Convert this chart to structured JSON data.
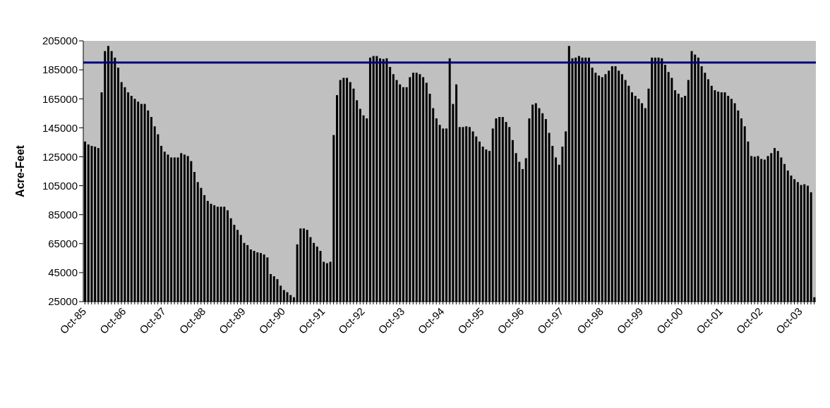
{
  "chart_data": {
    "type": "bar",
    "ylabel": "Acre-Feet",
    "categories": [
      "Oct-85",
      null,
      null,
      null,
      null,
      null,
      null,
      null,
      null,
      null,
      null,
      null,
      "Oct-86",
      null,
      null,
      null,
      null,
      null,
      null,
      null,
      null,
      null,
      null,
      null,
      "Oct-87",
      null,
      null,
      null,
      null,
      null,
      null,
      null,
      null,
      null,
      null,
      null,
      "Oct-88",
      null,
      null,
      null,
      null,
      null,
      null,
      null,
      null,
      null,
      null,
      null,
      "Oct-89",
      null,
      null,
      null,
      null,
      null,
      null,
      null,
      null,
      null,
      null,
      null,
      "Oct-90",
      null,
      null,
      null,
      null,
      null,
      null,
      null,
      null,
      null,
      null,
      null,
      "Oct-91",
      null,
      null,
      null,
      null,
      null,
      null,
      null,
      null,
      null,
      null,
      null,
      "Oct-92",
      null,
      null,
      null,
      null,
      null,
      null,
      null,
      null,
      null,
      null,
      null,
      "Oct-93",
      null,
      null,
      null,
      null,
      null,
      null,
      null,
      null,
      null,
      null,
      null,
      "Oct-94",
      null,
      null,
      null,
      null,
      null,
      null,
      null,
      null,
      null,
      null,
      null,
      "Oct-95",
      null,
      null,
      null,
      null,
      null,
      null,
      null,
      null,
      null,
      null,
      null,
      "Oct-96",
      null,
      null,
      null,
      null,
      null,
      null,
      null,
      null,
      null,
      null,
      null,
      "Oct-97",
      null,
      null,
      null,
      null,
      null,
      null,
      null,
      null,
      null,
      null,
      null,
      "Oct-98",
      null,
      null,
      null,
      null,
      null,
      null,
      null,
      null,
      null,
      null,
      null,
      "Oct-99",
      null,
      null,
      null,
      null,
      null,
      null,
      null,
      null,
      null,
      null,
      null,
      "Oct-00",
      null,
      null,
      null,
      null,
      null,
      null,
      null,
      null,
      null,
      null,
      null,
      "Oct-01",
      null,
      null,
      null,
      null,
      null,
      null,
      null,
      null,
      null,
      null,
      null,
      "Oct-02",
      null,
      null,
      null,
      null,
      null,
      null,
      null,
      null,
      null,
      null,
      null,
      "Oct-03",
      null,
      null,
      null,
      null
    ],
    "values": [
      135500,
      133500,
      132500,
      132000,
      131000,
      169500,
      198000,
      201500,
      198000,
      193500,
      186500,
      176500,
      173000,
      169500,
      167000,
      165000,
      163000,
      161500,
      161500,
      157000,
      152500,
      146000,
      140500,
      132500,
      128500,
      126500,
      124500,
      124500,
      124500,
      127500,
      126500,
      125500,
      122000,
      114500,
      107500,
      103500,
      98500,
      94500,
      92500,
      91500,
      90500,
      90500,
      90500,
      88000,
      82500,
      78000,
      74500,
      71000,
      65500,
      64000,
      61000,
      60000,
      59000,
      58500,
      57500,
      55500,
      44000,
      42500,
      40500,
      36000,
      33000,
      31500,
      29500,
      28000,
      64500,
      75500,
      75500,
      74500,
      69500,
      65500,
      63000,
      60000,
      52500,
      51500,
      52500,
      140000,
      167500,
      178000,
      179500,
      179500,
      176500,
      172000,
      164000,
      158000,
      153500,
      151500,
      193500,
      194500,
      194500,
      193000,
      192500,
      193000,
      187000,
      182000,
      178000,
      175000,
      173000,
      173000,
      180000,
      183000,
      183000,
      182000,
      180000,
      176000,
      168500,
      158500,
      151500,
      147000,
      144500,
      144500,
      193000,
      161500,
      175000,
      145500,
      145500,
      146000,
      145500,
      142500,
      139000,
      135500,
      132000,
      130000,
      129000,
      144500,
      151500,
      152500,
      152500,
      149000,
      145500,
      136500,
      127500,
      121500,
      116500,
      124000,
      151500,
      161000,
      162000,
      158500,
      155000,
      151000,
      141500,
      132500,
      124500,
      119500,
      132000,
      142500,
      201500,
      193000,
      193500,
      194500,
      193500,
      193500,
      193500,
      186500,
      183000,
      181000,
      180000,
      182000,
      184500,
      187500,
      187500,
      184500,
      182000,
      178000,
      174000,
      169500,
      167000,
      165000,
      162000,
      158500,
      172000,
      193500,
      193500,
      193500,
      193000,
      188500,
      183500,
      179500,
      171000,
      168500,
      166000,
      167000,
      178000,
      198000,
      195500,
      193500,
      187500,
      183000,
      178500,
      174000,
      171000,
      170000,
      169500,
      169500,
      167000,
      165000,
      162000,
      157000,
      151500,
      146000,
      135500,
      125500,
      125000,
      125500,
      123500,
      123000,
      125500,
      127500,
      131000,
      129000,
      124500,
      120000,
      115500,
      112000,
      109500,
      107500,
      105500,
      106000,
      105000,
      100500,
      28000
    ],
    "color": "#000000",
    "ylim": [
      25000,
      205000
    ],
    "yticks": [
      25000,
      45000,
      65000,
      85000,
      105000,
      125000,
      145000,
      165000,
      185000,
      205000
    ],
    "ref_lines": [
      {
        "axis": "y",
        "value": 190000,
        "color": "#000080",
        "line_style": "solid"
      }
    ]
  }
}
